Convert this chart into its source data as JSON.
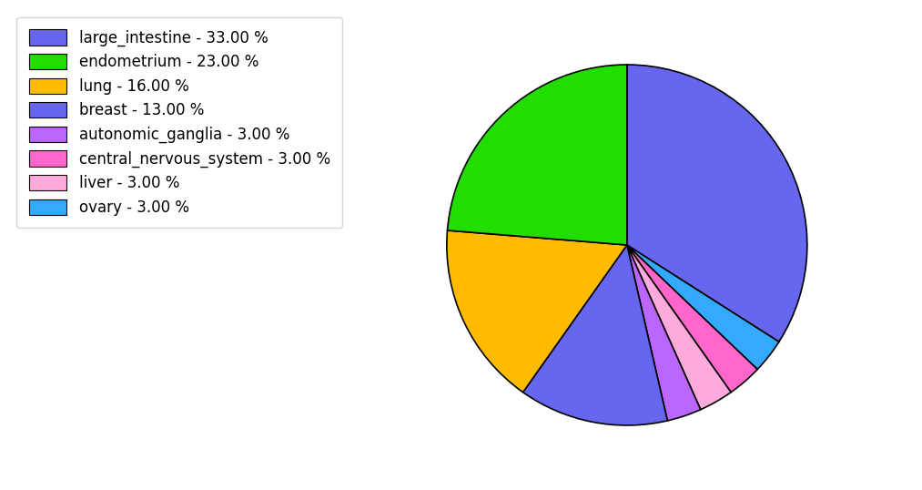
{
  "labels": [
    "large_intestine",
    "endometrium",
    "lung",
    "breast",
    "autonomic_ganglia",
    "central_nervous_system",
    "liver",
    "ovary"
  ],
  "values": [
    33,
    23,
    16,
    13,
    3,
    3,
    3,
    3
  ],
  "pie_order": [
    "large_intestine",
    "ovary",
    "central_nervous_system",
    "liver",
    "autonomic_ganglia",
    "breast",
    "lung",
    "endometrium"
  ],
  "pie_values": [
    33,
    3,
    3,
    3,
    3,
    13,
    16,
    23
  ],
  "pie_colors": [
    "#6666ee",
    "#33aaff",
    "#ff66cc",
    "#ffaadd",
    "#bb66ff",
    "#6666ee",
    "#ffbb00",
    "#22dd00"
  ],
  "colors": [
    "#6666ee",
    "#22dd00",
    "#ffbb00",
    "#6666ee",
    "#bb66ff",
    "#ff66cc",
    "#ffaadd",
    "#33aaff"
  ],
  "legend_labels": [
    "large_intestine - 33.00 %",
    "endometrium - 23.00 %",
    "lung - 16.00 %",
    "breast - 13.00 %",
    "autonomic_ganglia - 3.00 %",
    "central_nervous_system - 3.00 %",
    "liver - 3.00 %",
    "ovary - 3.00 %"
  ],
  "startangle": 90,
  "figsize": [
    10.13,
    5.38
  ],
  "dpi": 100
}
